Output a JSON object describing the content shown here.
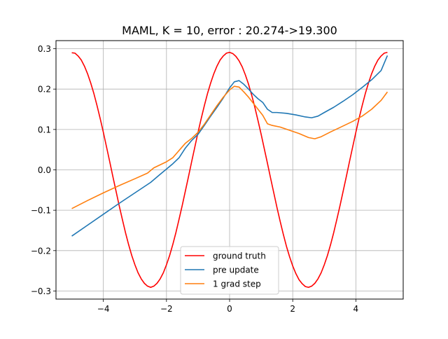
{
  "chart_data": {
    "type": "line",
    "title": "MAML, K = 10, error : 20.274->19.300",
    "xlabel": "",
    "ylabel": "",
    "xlim": [
      -5.5,
      5.5
    ],
    "ylim": [
      -0.32,
      0.32
    ],
    "xticks": [
      -4,
      -2,
      0,
      2,
      4
    ],
    "xtick_labels": [
      "−4",
      "−2",
      "0",
      "2",
      "4"
    ],
    "yticks": [
      -0.3,
      -0.2,
      -0.1,
      0.0,
      0.1,
      0.2,
      0.3
    ],
    "ytick_labels": [
      "−0.3",
      "−0.2",
      "−0.1",
      "0.0",
      "0.1",
      "0.2",
      "0.3"
    ],
    "grid": true,
    "legend_position": "lower center",
    "series": [
      {
        "name": "ground truth",
        "color": "#ff0000",
        "points": [
          [
            -5.0,
            0.29
          ],
          [
            -4.9,
            0.289
          ],
          [
            -4.8,
            0.282
          ],
          [
            -4.7,
            0.272
          ],
          [
            -4.6,
            0.257
          ],
          [
            -4.5,
            0.238
          ],
          [
            -4.4,
            0.215
          ],
          [
            -4.3,
            0.189
          ],
          [
            -4.2,
            0.159
          ],
          [
            -4.1,
            0.127
          ],
          [
            -4.0,
            0.093
          ],
          [
            -3.9,
            0.057
          ],
          [
            -3.8,
            0.021
          ],
          [
            -3.7,
            -0.016
          ],
          [
            -3.6,
            -0.052
          ],
          [
            -3.5,
            -0.088
          ],
          [
            -3.4,
            -0.122
          ],
          [
            -3.3,
            -0.155
          ],
          [
            -3.2,
            -0.185
          ],
          [
            -3.1,
            -0.212
          ],
          [
            -3.0,
            -0.235
          ],
          [
            -2.9,
            -0.255
          ],
          [
            -2.8,
            -0.27
          ],
          [
            -2.7,
            -0.281
          ],
          [
            -2.6,
            -0.288
          ],
          [
            -2.5,
            -0.291
          ],
          [
            -2.4,
            -0.288
          ],
          [
            -2.3,
            -0.281
          ],
          [
            -2.2,
            -0.27
          ],
          [
            -2.1,
            -0.255
          ],
          [
            -2.0,
            -0.235
          ],
          [
            -1.9,
            -0.212
          ],
          [
            -1.8,
            -0.185
          ],
          [
            -1.7,
            -0.155
          ],
          [
            -1.6,
            -0.122
          ],
          [
            -1.5,
            -0.088
          ],
          [
            -1.4,
            -0.052
          ],
          [
            -1.3,
            -0.016
          ],
          [
            -1.2,
            0.021
          ],
          [
            -1.1,
            0.057
          ],
          [
            -1.0,
            0.093
          ],
          [
            -0.9,
            0.127
          ],
          [
            -0.8,
            0.159
          ],
          [
            -0.7,
            0.189
          ],
          [
            -0.6,
            0.215
          ],
          [
            -0.5,
            0.238
          ],
          [
            -0.4,
            0.257
          ],
          [
            -0.3,
            0.272
          ],
          [
            -0.2,
            0.282
          ],
          [
            -0.1,
            0.289
          ],
          [
            0.0,
            0.291
          ],
          [
            0.1,
            0.288
          ],
          [
            0.2,
            0.281
          ],
          [
            0.3,
            0.27
          ],
          [
            0.4,
            0.255
          ],
          [
            0.5,
            0.235
          ],
          [
            0.6,
            0.212
          ],
          [
            0.7,
            0.185
          ],
          [
            0.8,
            0.155
          ],
          [
            0.9,
            0.122
          ],
          [
            1.0,
            0.088
          ],
          [
            1.1,
            0.052
          ],
          [
            1.2,
            0.016
          ],
          [
            1.3,
            -0.021
          ],
          [
            1.4,
            -0.057
          ],
          [
            1.5,
            -0.093
          ],
          [
            1.6,
            -0.127
          ],
          [
            1.7,
            -0.159
          ],
          [
            1.8,
            -0.189
          ],
          [
            1.9,
            -0.215
          ],
          [
            2.0,
            -0.238
          ],
          [
            2.1,
            -0.257
          ],
          [
            2.2,
            -0.272
          ],
          [
            2.3,
            -0.282
          ],
          [
            2.4,
            -0.289
          ],
          [
            2.5,
            -0.291
          ],
          [
            2.6,
            -0.288
          ],
          [
            2.7,
            -0.281
          ],
          [
            2.8,
            -0.27
          ],
          [
            2.9,
            -0.255
          ],
          [
            3.0,
            -0.235
          ],
          [
            3.1,
            -0.212
          ],
          [
            3.2,
            -0.185
          ],
          [
            3.3,
            -0.155
          ],
          [
            3.4,
            -0.122
          ],
          [
            3.5,
            -0.088
          ],
          [
            3.6,
            -0.052
          ],
          [
            3.7,
            -0.016
          ],
          [
            3.8,
            0.021
          ],
          [
            3.9,
            0.057
          ],
          [
            4.0,
            0.093
          ],
          [
            4.1,
            0.127
          ],
          [
            4.2,
            0.159
          ],
          [
            4.3,
            0.189
          ],
          [
            4.4,
            0.215
          ],
          [
            4.5,
            0.238
          ],
          [
            4.6,
            0.257
          ],
          [
            4.7,
            0.272
          ],
          [
            4.8,
            0.282
          ],
          [
            4.9,
            0.289
          ],
          [
            5.0,
            0.291
          ]
        ]
      },
      {
        "name": "pre update",
        "color": "#1f77b4",
        "points": [
          [
            -5.0,
            -0.164
          ],
          [
            -4.5,
            -0.137
          ],
          [
            -4.0,
            -0.11
          ],
          [
            -3.5,
            -0.083
          ],
          [
            -3.0,
            -0.057
          ],
          [
            -2.5,
            -0.031
          ],
          [
            -2.2,
            -0.011
          ],
          [
            -2.0,
            0.002
          ],
          [
            -1.8,
            0.015
          ],
          [
            -1.6,
            0.03
          ],
          [
            -1.4,
            0.054
          ],
          [
            -1.2,
            0.073
          ],
          [
            -1.0,
            0.088
          ],
          [
            -0.8,
            0.11
          ],
          [
            -0.6,
            0.133
          ],
          [
            -0.4,
            0.155
          ],
          [
            -0.2,
            0.178
          ],
          [
            0.0,
            0.203
          ],
          [
            0.15,
            0.218
          ],
          [
            0.3,
            0.221
          ],
          [
            0.45,
            0.212
          ],
          [
            0.6,
            0.2
          ],
          [
            0.75,
            0.187
          ],
          [
            0.9,
            0.176
          ],
          [
            1.05,
            0.167
          ],
          [
            1.2,
            0.15
          ],
          [
            1.35,
            0.142
          ],
          [
            1.5,
            0.142
          ],
          [
            1.8,
            0.14
          ],
          [
            2.1,
            0.136
          ],
          [
            2.4,
            0.131
          ],
          [
            2.6,
            0.129
          ],
          [
            2.8,
            0.133
          ],
          [
            3.0,
            0.142
          ],
          [
            3.3,
            0.155
          ],
          [
            3.6,
            0.17
          ],
          [
            3.9,
            0.186
          ],
          [
            4.2,
            0.204
          ],
          [
            4.5,
            0.223
          ],
          [
            4.8,
            0.246
          ],
          [
            5.0,
            0.283
          ]
        ]
      },
      {
        "name": "1 grad step",
        "color": "#ff7f0e",
        "points": [
          [
            -5.0,
            -0.096
          ],
          [
            -4.5,
            -0.076
          ],
          [
            -4.0,
            -0.057
          ],
          [
            -3.5,
            -0.039
          ],
          [
            -3.0,
            -0.022
          ],
          [
            -2.6,
            -0.008
          ],
          [
            -2.4,
            0.005
          ],
          [
            -2.0,
            0.02
          ],
          [
            -1.8,
            0.03
          ],
          [
            -1.6,
            0.048
          ],
          [
            -1.4,
            0.066
          ],
          [
            -1.2,
            0.078
          ],
          [
            -1.0,
            0.093
          ],
          [
            -0.8,
            0.113
          ],
          [
            -0.6,
            0.136
          ],
          [
            -0.4,
            0.159
          ],
          [
            -0.2,
            0.18
          ],
          [
            0.0,
            0.198
          ],
          [
            0.15,
            0.207
          ],
          [
            0.3,
            0.205
          ],
          [
            0.45,
            0.193
          ],
          [
            0.6,
            0.18
          ],
          [
            0.75,
            0.165
          ],
          [
            0.9,
            0.15
          ],
          [
            1.05,
            0.135
          ],
          [
            1.2,
            0.114
          ],
          [
            1.35,
            0.11
          ],
          [
            1.6,
            0.106
          ],
          [
            1.9,
            0.098
          ],
          [
            2.2,
            0.09
          ],
          [
            2.5,
            0.08
          ],
          [
            2.7,
            0.077
          ],
          [
            2.9,
            0.082
          ],
          [
            3.2,
            0.094
          ],
          [
            3.5,
            0.105
          ],
          [
            3.9,
            0.12
          ],
          [
            4.2,
            0.133
          ],
          [
            4.5,
            0.15
          ],
          [
            4.8,
            0.172
          ],
          [
            5.0,
            0.193
          ]
        ]
      }
    ]
  }
}
